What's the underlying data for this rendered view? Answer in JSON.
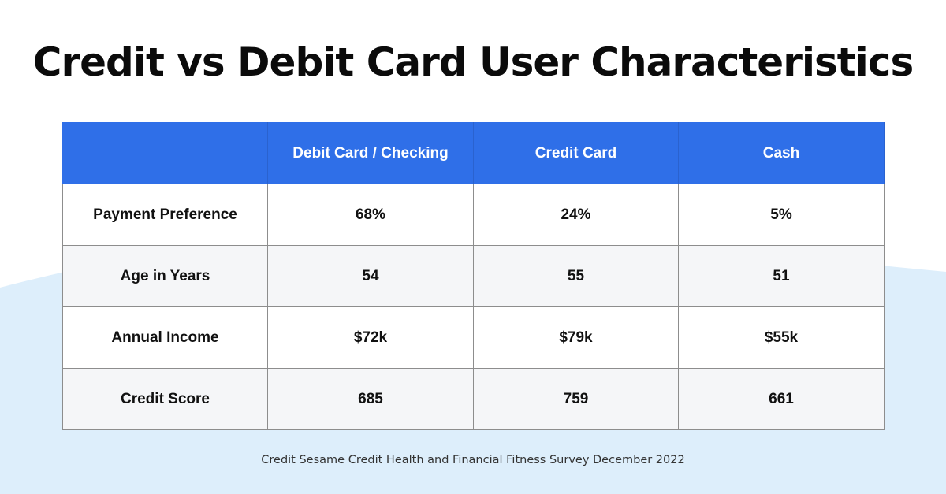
{
  "page": {
    "title": "Credit vs Debit Card User Characteristics",
    "source": "Credit Sesame Credit Health and Financial Fitness Survey December 2022"
  },
  "colors": {
    "header_bg": "#2f6fe8",
    "header_text": "#ffffff",
    "wave_bg": "#ddeefb",
    "row_alt_bg": "#f5f6f8",
    "border": "#8d8d8d"
  },
  "table": {
    "corner": "",
    "columns": [
      "Debit Card / Checking",
      "Credit Card",
      "Cash"
    ],
    "rows": [
      {
        "label": "Payment Preference",
        "values": [
          "68%",
          "24%",
          "5%"
        ]
      },
      {
        "label": "Age in Years",
        "values": [
          "54",
          "55",
          "51"
        ]
      },
      {
        "label": "Annual Income",
        "values": [
          "$72k",
          "$79k",
          "$55k"
        ]
      },
      {
        "label": "Credit Score",
        "values": [
          "685",
          "759",
          "661"
        ]
      }
    ]
  },
  "chart_data": {
    "type": "table",
    "title": "Credit vs Debit Card User Characteristics",
    "columns": [
      "Debit Card / Checking",
      "Credit Card",
      "Cash"
    ],
    "rows": [
      {
        "label": "Payment Preference",
        "values": [
          "68%",
          "24%",
          "5%"
        ]
      },
      {
        "label": "Age in Years",
        "values": [
          54,
          55,
          51
        ]
      },
      {
        "label": "Annual Income",
        "values": [
          "$72k",
          "$79k",
          "$55k"
        ]
      },
      {
        "label": "Credit Score",
        "values": [
          685,
          759,
          661
        ]
      }
    ],
    "source": "Credit Sesame Credit Health and Financial Fitness Survey December 2022"
  }
}
